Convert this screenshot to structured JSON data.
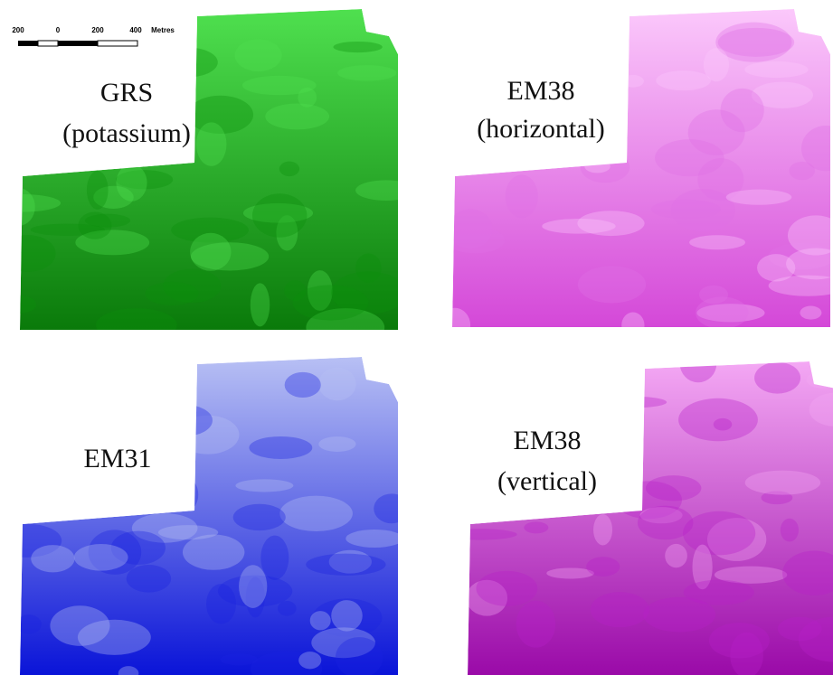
{
  "scale_bar": {
    "labels": [
      "200",
      "0",
      "200",
      "400"
    ],
    "unit": "Metres"
  },
  "maps": [
    {
      "lines": [
        "GRS",
        "(potassium)"
      ]
    },
    {
      "lines": [
        "EM38",
        "(horizontal)"
      ]
    },
    {
      "lines": [
        "EM31"
      ]
    },
    {
      "lines": [
        "EM38",
        "(vertical)"
      ]
    }
  ]
}
